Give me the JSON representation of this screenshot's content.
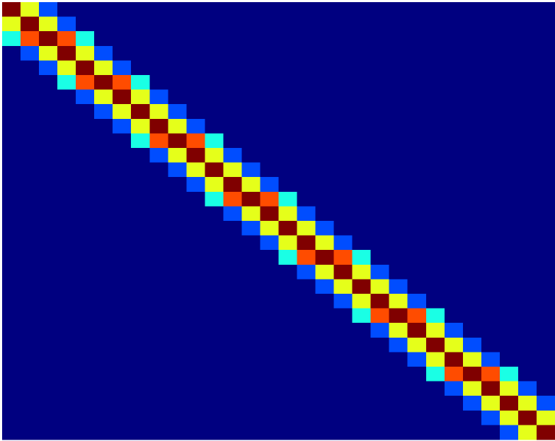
{
  "chart_data": {
    "type": "heatmap",
    "colormap": "jet",
    "vlim": [
      0,
      1
    ],
    "values": [
      [
        1,
        0.6,
        0.2,
        0,
        0,
        0,
        0,
        0,
        0,
        0,
        0,
        0,
        0,
        0,
        0,
        0,
        0,
        0,
        0,
        0,
        0,
        0,
        0,
        0,
        0,
        0,
        0,
        0,
        0,
        0
      ],
      [
        0.6,
        1,
        0.6,
        0.2,
        0,
        0,
        0,
        0,
        0,
        0,
        0,
        0,
        0,
        0,
        0,
        0,
        0,
        0,
        0,
        0,
        0,
        0,
        0,
        0,
        0,
        0,
        0,
        0,
        0,
        0
      ],
      [
        0.4,
        0.8,
        1,
        0.8,
        0.4,
        0,
        0,
        0,
        0,
        0,
        0,
        0,
        0,
        0,
        0,
        0,
        0,
        0,
        0,
        0,
        0,
        0,
        0,
        0,
        0,
        0,
        0,
        0,
        0,
        0
      ],
      [
        0,
        0.2,
        0.6,
        1,
        0.6,
        0.2,
        0,
        0,
        0,
        0,
        0,
        0,
        0,
        0,
        0,
        0,
        0,
        0,
        0,
        0,
        0,
        0,
        0,
        0,
        0,
        0,
        0,
        0,
        0,
        0
      ],
      [
        0,
        0,
        0.2,
        0.6,
        1,
        0.6,
        0.2,
        0,
        0,
        0,
        0,
        0,
        0,
        0,
        0,
        0,
        0,
        0,
        0,
        0,
        0,
        0,
        0,
        0,
        0,
        0,
        0,
        0,
        0,
        0
      ],
      [
        0,
        0,
        0,
        0.4,
        0.8,
        1,
        0.8,
        0.4,
        0,
        0,
        0,
        0,
        0,
        0,
        0,
        0,
        0,
        0,
        0,
        0,
        0,
        0,
        0,
        0,
        0,
        0,
        0,
        0,
        0,
        0
      ],
      [
        0,
        0,
        0,
        0,
        0.2,
        0.6,
        1,
        0.6,
        0.2,
        0,
        0,
        0,
        0,
        0,
        0,
        0,
        0,
        0,
        0,
        0,
        0,
        0,
        0,
        0,
        0,
        0,
        0,
        0,
        0,
        0
      ],
      [
        0,
        0,
        0,
        0,
        0,
        0.2,
        0.6,
        1,
        0.6,
        0.2,
        0,
        0,
        0,
        0,
        0,
        0,
        0,
        0,
        0,
        0,
        0,
        0,
        0,
        0,
        0,
        0,
        0,
        0,
        0,
        0
      ],
      [
        0,
        0,
        0,
        0,
        0,
        0,
        0.2,
        0.6,
        1,
        0.6,
        0.2,
        0,
        0,
        0,
        0,
        0,
        0,
        0,
        0,
        0,
        0,
        0,
        0,
        0,
        0,
        0,
        0,
        0,
        0,
        0
      ],
      [
        0,
        0,
        0,
        0,
        0,
        0,
        0,
        0.4,
        0.8,
        1,
        0.8,
        0.4,
        0,
        0,
        0,
        0,
        0,
        0,
        0,
        0,
        0,
        0,
        0,
        0,
        0,
        0,
        0,
        0,
        0,
        0
      ],
      [
        0,
        0,
        0,
        0,
        0,
        0,
        0,
        0,
        0.2,
        0.6,
        1,
        0.6,
        0.2,
        0,
        0,
        0,
        0,
        0,
        0,
        0,
        0,
        0,
        0,
        0,
        0,
        0,
        0,
        0,
        0,
        0
      ],
      [
        0,
        0,
        0,
        0,
        0,
        0,
        0,
        0,
        0,
        0.2,
        0.6,
        1,
        0.6,
        0.2,
        0,
        0,
        0,
        0,
        0,
        0,
        0,
        0,
        0,
        0,
        0,
        0,
        0,
        0,
        0,
        0
      ],
      [
        0,
        0,
        0,
        0,
        0,
        0,
        0,
        0,
        0,
        0,
        0.2,
        0.6,
        1,
        0.6,
        0.2,
        0,
        0,
        0,
        0,
        0,
        0,
        0,
        0,
        0,
        0,
        0,
        0,
        0,
        0,
        0
      ],
      [
        0,
        0,
        0,
        0,
        0,
        0,
        0,
        0,
        0,
        0,
        0,
        0.4,
        0.8,
        1,
        0.8,
        0.4,
        0,
        0,
        0,
        0,
        0,
        0,
        0,
        0,
        0,
        0,
        0,
        0,
        0,
        0
      ],
      [
        0,
        0,
        0,
        0,
        0,
        0,
        0,
        0,
        0,
        0,
        0,
        0,
        0.2,
        0.6,
        1,
        0.6,
        0.2,
        0,
        0,
        0,
        0,
        0,
        0,
        0,
        0,
        0,
        0,
        0,
        0,
        0
      ],
      [
        0,
        0,
        0,
        0,
        0,
        0,
        0,
        0,
        0,
        0,
        0,
        0,
        0,
        0.2,
        0.6,
        1,
        0.6,
        0.2,
        0,
        0,
        0,
        0,
        0,
        0,
        0,
        0,
        0,
        0,
        0,
        0
      ],
      [
        0,
        0,
        0,
        0,
        0,
        0,
        0,
        0,
        0,
        0,
        0,
        0,
        0,
        0,
        0.2,
        0.6,
        1,
        0.6,
        0.2,
        0,
        0,
        0,
        0,
        0,
        0,
        0,
        0,
        0,
        0,
        0
      ],
      [
        0,
        0,
        0,
        0,
        0,
        0,
        0,
        0,
        0,
        0,
        0,
        0,
        0,
        0,
        0,
        0.4,
        0.8,
        1,
        0.8,
        0.4,
        0,
        0,
        0,
        0,
        0,
        0,
        0,
        0,
        0,
        0
      ],
      [
        0,
        0,
        0,
        0,
        0,
        0,
        0,
        0,
        0,
        0,
        0,
        0,
        0,
        0,
        0,
        0,
        0.2,
        0.6,
        1,
        0.6,
        0.2,
        0,
        0,
        0,
        0,
        0,
        0,
        0,
        0,
        0
      ],
      [
        0,
        0,
        0,
        0,
        0,
        0,
        0,
        0,
        0,
        0,
        0,
        0,
        0,
        0,
        0,
        0,
        0,
        0.2,
        0.6,
        1,
        0.6,
        0.2,
        0,
        0,
        0,
        0,
        0,
        0,
        0,
        0
      ],
      [
        0,
        0,
        0,
        0,
        0,
        0,
        0,
        0,
        0,
        0,
        0,
        0,
        0,
        0,
        0,
        0,
        0,
        0,
        0.2,
        0.6,
        1,
        0.6,
        0.2,
        0,
        0,
        0,
        0,
        0,
        0,
        0
      ],
      [
        0,
        0,
        0,
        0,
        0,
        0,
        0,
        0,
        0,
        0,
        0,
        0,
        0,
        0,
        0,
        0,
        0,
        0,
        0,
        0.4,
        0.8,
        1,
        0.8,
        0.4,
        0,
        0,
        0,
        0,
        0,
        0
      ],
      [
        0,
        0,
        0,
        0,
        0,
        0,
        0,
        0,
        0,
        0,
        0,
        0,
        0,
        0,
        0,
        0,
        0,
        0,
        0,
        0,
        0.2,
        0.6,
        1,
        0.6,
        0.2,
        0,
        0,
        0,
        0,
        0
      ],
      [
        0,
        0,
        0,
        0,
        0,
        0,
        0,
        0,
        0,
        0,
        0,
        0,
        0,
        0,
        0,
        0,
        0,
        0,
        0,
        0,
        0,
        0.2,
        0.6,
        1,
        0.6,
        0.2,
        0,
        0,
        0,
        0
      ],
      [
        0,
        0,
        0,
        0,
        0,
        0,
        0,
        0,
        0,
        0,
        0,
        0,
        0,
        0,
        0,
        0,
        0,
        0,
        0,
        0,
        0,
        0,
        0.2,
        0.6,
        1,
        0.6,
        0.2,
        0,
        0,
        0
      ],
      [
        0,
        0,
        0,
        0,
        0,
        0,
        0,
        0,
        0,
        0,
        0,
        0,
        0,
        0,
        0,
        0,
        0,
        0,
        0,
        0,
        0,
        0,
        0,
        0.4,
        0.8,
        1,
        0.8,
        0.4,
        0,
        0
      ],
      [
        0,
        0,
        0,
        0,
        0,
        0,
        0,
        0,
        0,
        0,
        0,
        0,
        0,
        0,
        0,
        0,
        0,
        0,
        0,
        0,
        0,
        0,
        0,
        0,
        0.2,
        0.6,
        1,
        0.6,
        0.2,
        0
      ],
      [
        0,
        0,
        0,
        0,
        0,
        0,
        0,
        0,
        0,
        0,
        0,
        0,
        0,
        0,
        0,
        0,
        0,
        0,
        0,
        0,
        0,
        0,
        0,
        0,
        0,
        0.2,
        0.6,
        1,
        0.6,
        0.2
      ],
      [
        0,
        0,
        0,
        0,
        0,
        0,
        0,
        0,
        0,
        0,
        0,
        0,
        0,
        0,
        0,
        0,
        0,
        0,
        0,
        0,
        0,
        0,
        0,
        0,
        0,
        0,
        0.2,
        0.6,
        1,
        0.6
      ],
      [
        0,
        0,
        0,
        0,
        0,
        0,
        0,
        0,
        0,
        0,
        0,
        0,
        0,
        0,
        0,
        0,
        0,
        0,
        0,
        0,
        0,
        0,
        0,
        0,
        0,
        0,
        0,
        0.2,
        0.6,
        1
      ]
    ]
  }
}
